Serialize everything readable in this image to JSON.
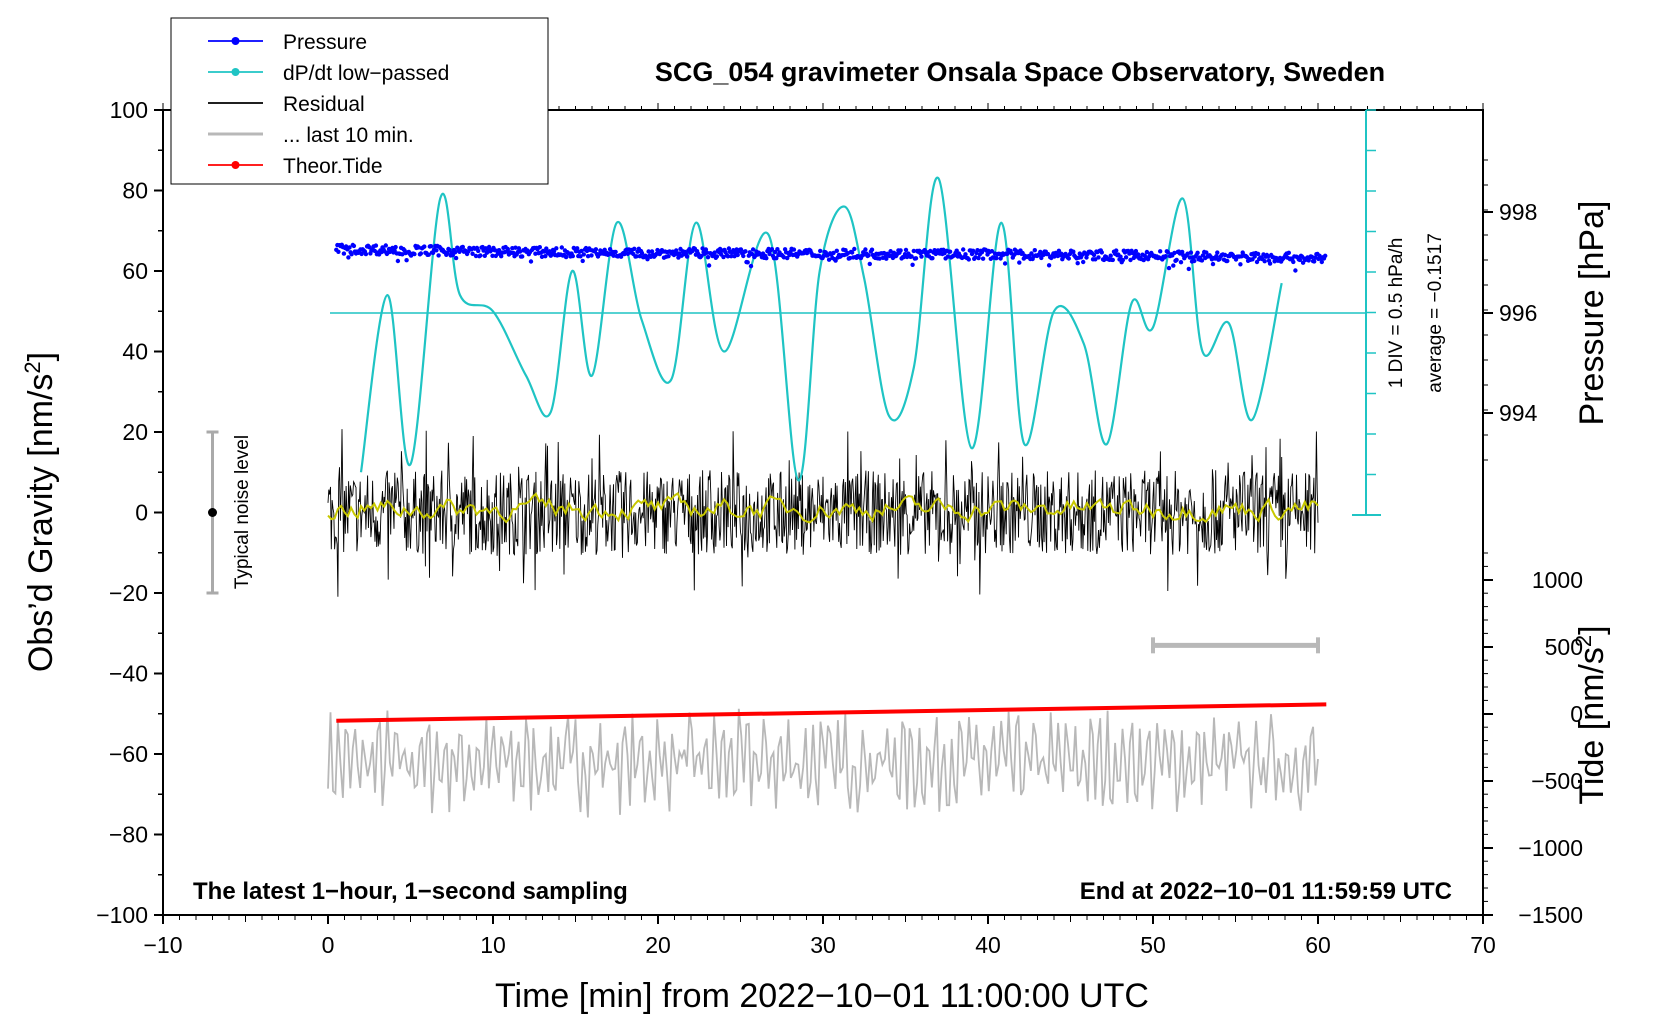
{
  "chart_data": {
    "type": "line",
    "title": "SCG_054 gravimeter Onsala Space Observatory, Sweden",
    "xlabel": "Time [min] from 2022−10−01 11:00:00 UTC",
    "ylabel_left": "Obs’d Gravity [nm/s",
    "ylabel_left_sup": "2",
    "ylabel_left_end": "]",
    "ylabel_right_top": "Pressure [hPa]",
    "ylabel_right_bottom": "Tide [nm/s",
    "ylabel_right_bottom_sup": "2",
    "ylabel_right_bottom_end": "]",
    "xlim": [
      -10,
      70
    ],
    "ylim_left": [
      -100,
      100
    ],
    "x_ticks": [
      "−10",
      "0",
      "10",
      "20",
      "30",
      "40",
      "50",
      "60",
      "70"
    ],
    "y_ticks_left": [
      "100",
      "80",
      "60",
      "40",
      "20",
      "0",
      "−20",
      "−40",
      "−60",
      "−80",
      "−100"
    ],
    "pressure_ticks": [
      "998",
      "996",
      "994"
    ],
    "tide_ticks": [
      "1000",
      "500",
      "0",
      "−500",
      "−1000",
      "−1500"
    ],
    "legend": [
      {
        "label": "Pressure",
        "color": "#0000ff",
        "marker": true
      },
      {
        "label": "dP/dt low−passed",
        "color": "#1fc4c4",
        "marker": true
      },
      {
        "label": "Residual",
        "color": "#000000",
        "marker": false
      },
      {
        "label": "... last 10 min.",
        "color": "#b8b8b8",
        "marker": false
      },
      {
        "label": "Theor.Tide",
        "color": "#ff0000",
        "marker": true
      }
    ],
    "annotations": {
      "bottom_left": "The latest 1−hour, 1−second sampling",
      "bottom_right": "End at 2022−10−01 11:59:59 UTC",
      "noise_label": "Typical noise level",
      "scale_div": "1 DIV = 0.5 hPa/h",
      "scale_avg": "average = −0.1517"
    },
    "series": [
      {
        "name": "Pressure",
        "color": "#0000ff",
        "axis": "gravity_units",
        "x": [
          0.5,
          10,
          20,
          30,
          40,
          50,
          60.5
        ],
        "values": [
          65.5,
          64.8,
          64.5,
          64.3,
          64.2,
          63.8,
          63.2
        ],
        "scatter_amplitude": 1.2
      },
      {
        "name": "dP/dt low-passed",
        "color": "#1fc4c4",
        "axis": "gravity_units",
        "x": [
          2,
          3.6,
          5,
          6.8,
          8,
          10,
          12,
          13.5,
          14.8,
          16,
          17.5,
          19,
          20.8,
          22.3,
          24,
          26.7,
          28.5,
          29.8,
          31.3,
          32.5,
          34,
          35.5,
          37,
          39,
          40.8,
          42.2,
          44,
          45.8,
          47.2,
          48.7,
          50,
          51.8,
          53,
          54.6,
          56,
          57.8
        ],
        "values": [
          10,
          54,
          12,
          78,
          54,
          50,
          34,
          25,
          60,
          34,
          72,
          48,
          33,
          72,
          40,
          69,
          8,
          60,
          76,
          58,
          24,
          36,
          83,
          16,
          72,
          17,
          50,
          42,
          17,
          52,
          46,
          78,
          40,
          47,
          23,
          57
        ]
      },
      {
        "name": "Residual",
        "color": "#000000",
        "axis": "gravity",
        "x_range": [
          0,
          60
        ],
        "center": 0,
        "amplitude": 14
      },
      {
        "name": "Residual low-passed",
        "color": "#c8c800",
        "axis": "gravity",
        "x_range": [
          0,
          60
        ],
        "center": 1,
        "amplitude": 2
      },
      {
        "name": "... last 10 min.",
        "color": "#b8b8b8",
        "axis": "gravity",
        "x_range": [
          0,
          60
        ],
        "center": -62,
        "amplitude": 12
      },
      {
        "name": "Theor.Tide",
        "color": "#ff0000",
        "axis": "tide",
        "x": [
          0.5,
          60.5
        ],
        "values": [
          -50,
          72
        ]
      }
    ],
    "last10_marker": {
      "x_start": 50,
      "x_end": 60,
      "y": -33
    },
    "noise_marker": {
      "x": -7,
      "y_center": 0,
      "y_half_range": 20
    }
  }
}
